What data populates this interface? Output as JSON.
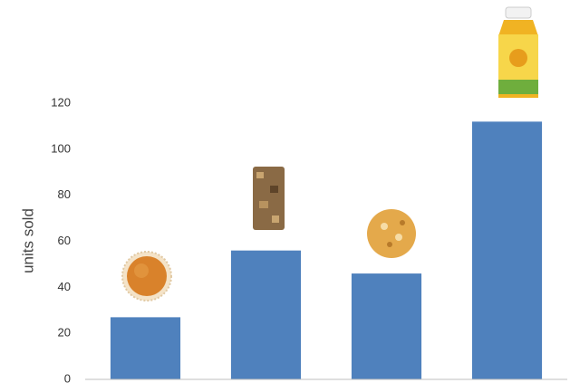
{
  "chart_data": {
    "type": "bar",
    "y_label": "units sold",
    "categories": [
      null,
      null,
      null,
      null
    ],
    "values": [
      27,
      56,
      46,
      112
    ],
    "color": "#4f81bd",
    "ylim": [
      0,
      120
    ],
    "yticks": [
      0,
      20,
      40,
      60,
      80,
      100,
      120
    ],
    "grid": false
  }
}
